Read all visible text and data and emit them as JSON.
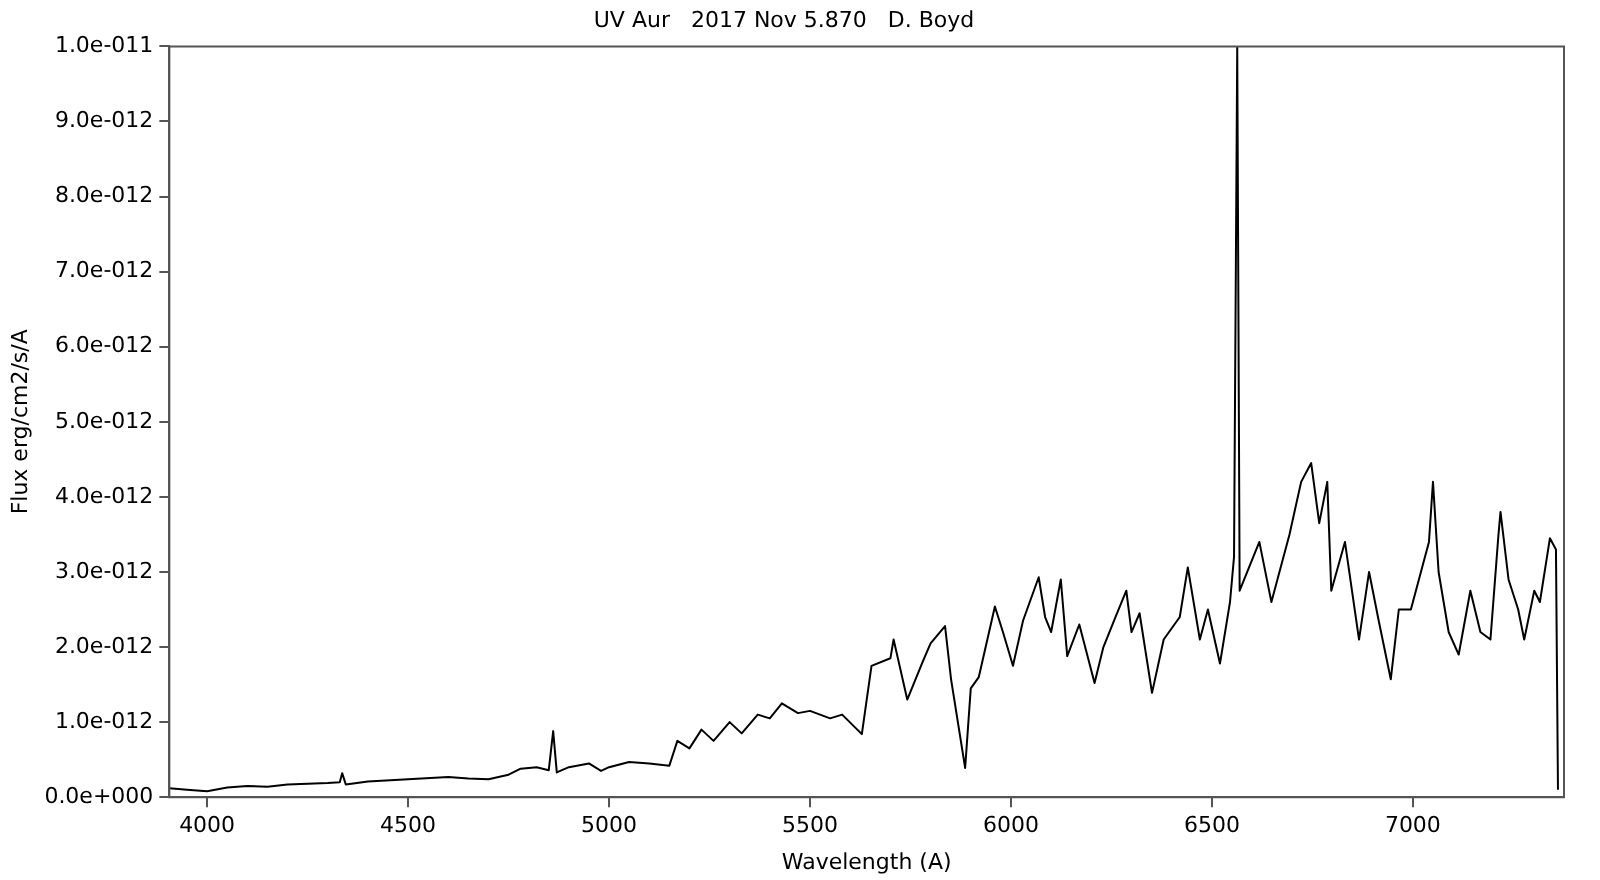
{
  "chart_data": {
    "type": "line",
    "title": "UV Aur   2017 Nov 5.870   D. Boyd",
    "xlabel": "Wavelength (A)",
    "ylabel": "Flux erg/cm2/s/A",
    "xlim": [
      3906,
      7376
    ],
    "xticks": [
      4000,
      4500,
      5000,
      5500,
      6000,
      6500,
      7000
    ],
    "ylim": [
      0,
      1e-11
    ],
    "yticks": [
      {
        "value": 0,
        "label": "0.0e+000"
      },
      {
        "value": 1e-12,
        "label": "1.0e-012"
      },
      {
        "value": 2e-12,
        "label": "2.0e-012"
      },
      {
        "value": 3e-12,
        "label": "3.0e-012"
      },
      {
        "value": 4e-12,
        "label": "4.0e-012"
      },
      {
        "value": 5e-12,
        "label": "5.0e-012"
      },
      {
        "value": 6e-12,
        "label": "6.0e-012"
      },
      {
        "value": 7e-12,
        "label": "7.0e-012"
      },
      {
        "value": 8e-12,
        "label": "8.0e-012"
      },
      {
        "value": 9e-12,
        "label": "9.0e-012"
      },
      {
        "value": 1e-11,
        "label": "1.0e-011"
      }
    ],
    "grid": false,
    "legend": false,
    "marker": "none",
    "line_style": "solid",
    "series": [
      {
        "color": "#000000",
        "x": [
          3906,
          3950,
          4000,
          4050,
          4100,
          4150,
          4200,
          4250,
          4300,
          4330,
          4336,
          4345,
          4400,
          4500,
          4600,
          4650,
          4700,
          4750,
          4780,
          4820,
          4850,
          4861,
          4870,
          4900,
          4950,
          4980,
          5000,
          5050,
          5100,
          5150,
          5170,
          5200,
          5230,
          5260,
          5300,
          5330,
          5370,
          5400,
          5430,
          5470,
          5500,
          5550,
          5580,
          5629,
          5653,
          5700,
          5708,
          5742,
          5780,
          5800,
          5836,
          5851,
          5886,
          5900,
          5920,
          5960,
          5980,
          6005,
          6030,
          6069,
          6085,
          6100,
          6124,
          6140,
          6170,
          6208,
          6230,
          6260,
          6287,
          6300,
          6320,
          6351,
          6380,
          6420,
          6440,
          6470,
          6490,
          6520,
          6545,
          6555,
          6563,
          6569,
          6618,
          6648,
          6693,
          6722,
          6747,
          6767,
          6787,
          6797,
          6831,
          6866,
          6891,
          6915,
          6945,
          6965,
          6995,
          7020,
          7040,
          7050,
          7064,
          7089,
          7114,
          7143,
          7168,
          7193,
          7213,
          7218,
          7238,
          7262,
          7277,
          7302,
          7316,
          7341,
          7356,
          7361
        ],
        "values": [
          1.2e-13,
          1e-13,
          8e-14,
          1.3e-13,
          1.5e-13,
          1.4e-13,
          1.7e-13,
          1.8e-13,
          1.9e-13,
          2e-13,
          3.2e-13,
          1.7e-13,
          2.1e-13,
          2.4e-13,
          2.7e-13,
          2.5e-13,
          2.4e-13,
          3e-13,
          3.8e-13,
          4e-13,
          3.6e-13,
          8.8e-13,
          3.3e-13,
          4e-13,
          4.5e-13,
          3.5e-13,
          4e-13,
          4.7e-13,
          4.5e-13,
          4.2e-13,
          7.5e-13,
          6.5e-13,
          9e-13,
          7.5e-13,
          1e-12,
          8.5e-13,
          1.1e-12,
          1.05e-12,
          1.25e-12,
          1.12e-12,
          1.15e-12,
          1.05e-12,
          1.1e-12,
          8.4e-13,
          1.75e-12,
          1.85e-12,
          2.1e-12,
          1.3e-12,
          1.8e-12,
          2.05e-12,
          2.28e-12,
          1.57e-12,
          3.9e-13,
          1.45e-12,
          1.6e-12,
          2.54e-12,
          2.2e-12,
          1.75e-12,
          2.35e-12,
          2.93e-12,
          2.4e-12,
          2.2e-12,
          2.9e-12,
          1.88e-12,
          2.3e-12,
          1.52e-12,
          2e-12,
          2.4e-12,
          2.75e-12,
          2.2e-12,
          2.45e-12,
          1.39e-12,
          2.1e-12,
          2.4e-12,
          3.06e-12,
          2.1e-12,
          2.5e-12,
          1.78e-12,
          2.6e-12,
          3.2e-12,
          1e-11,
          2.75e-12,
          3.4e-12,
          2.6e-12,
          3.5e-12,
          4.2e-12,
          4.45e-12,
          3.65e-12,
          4.2e-12,
          2.75e-12,
          3.4e-12,
          2.1e-12,
          3e-12,
          2.35e-12,
          1.57e-12,
          2.5e-12,
          2.5e-12,
          3e-12,
          3.4e-12,
          4.2e-12,
          3e-12,
          2.2e-12,
          1.9e-12,
          2.75e-12,
          2.2e-12,
          2.1e-12,
          3.5e-12,
          3.8e-12,
          2.9e-12,
          2.5e-12,
          2.1e-12,
          2.75e-12,
          2.6e-12,
          3.45e-12,
          3.3e-12,
          1e-13
        ]
      }
    ]
  }
}
